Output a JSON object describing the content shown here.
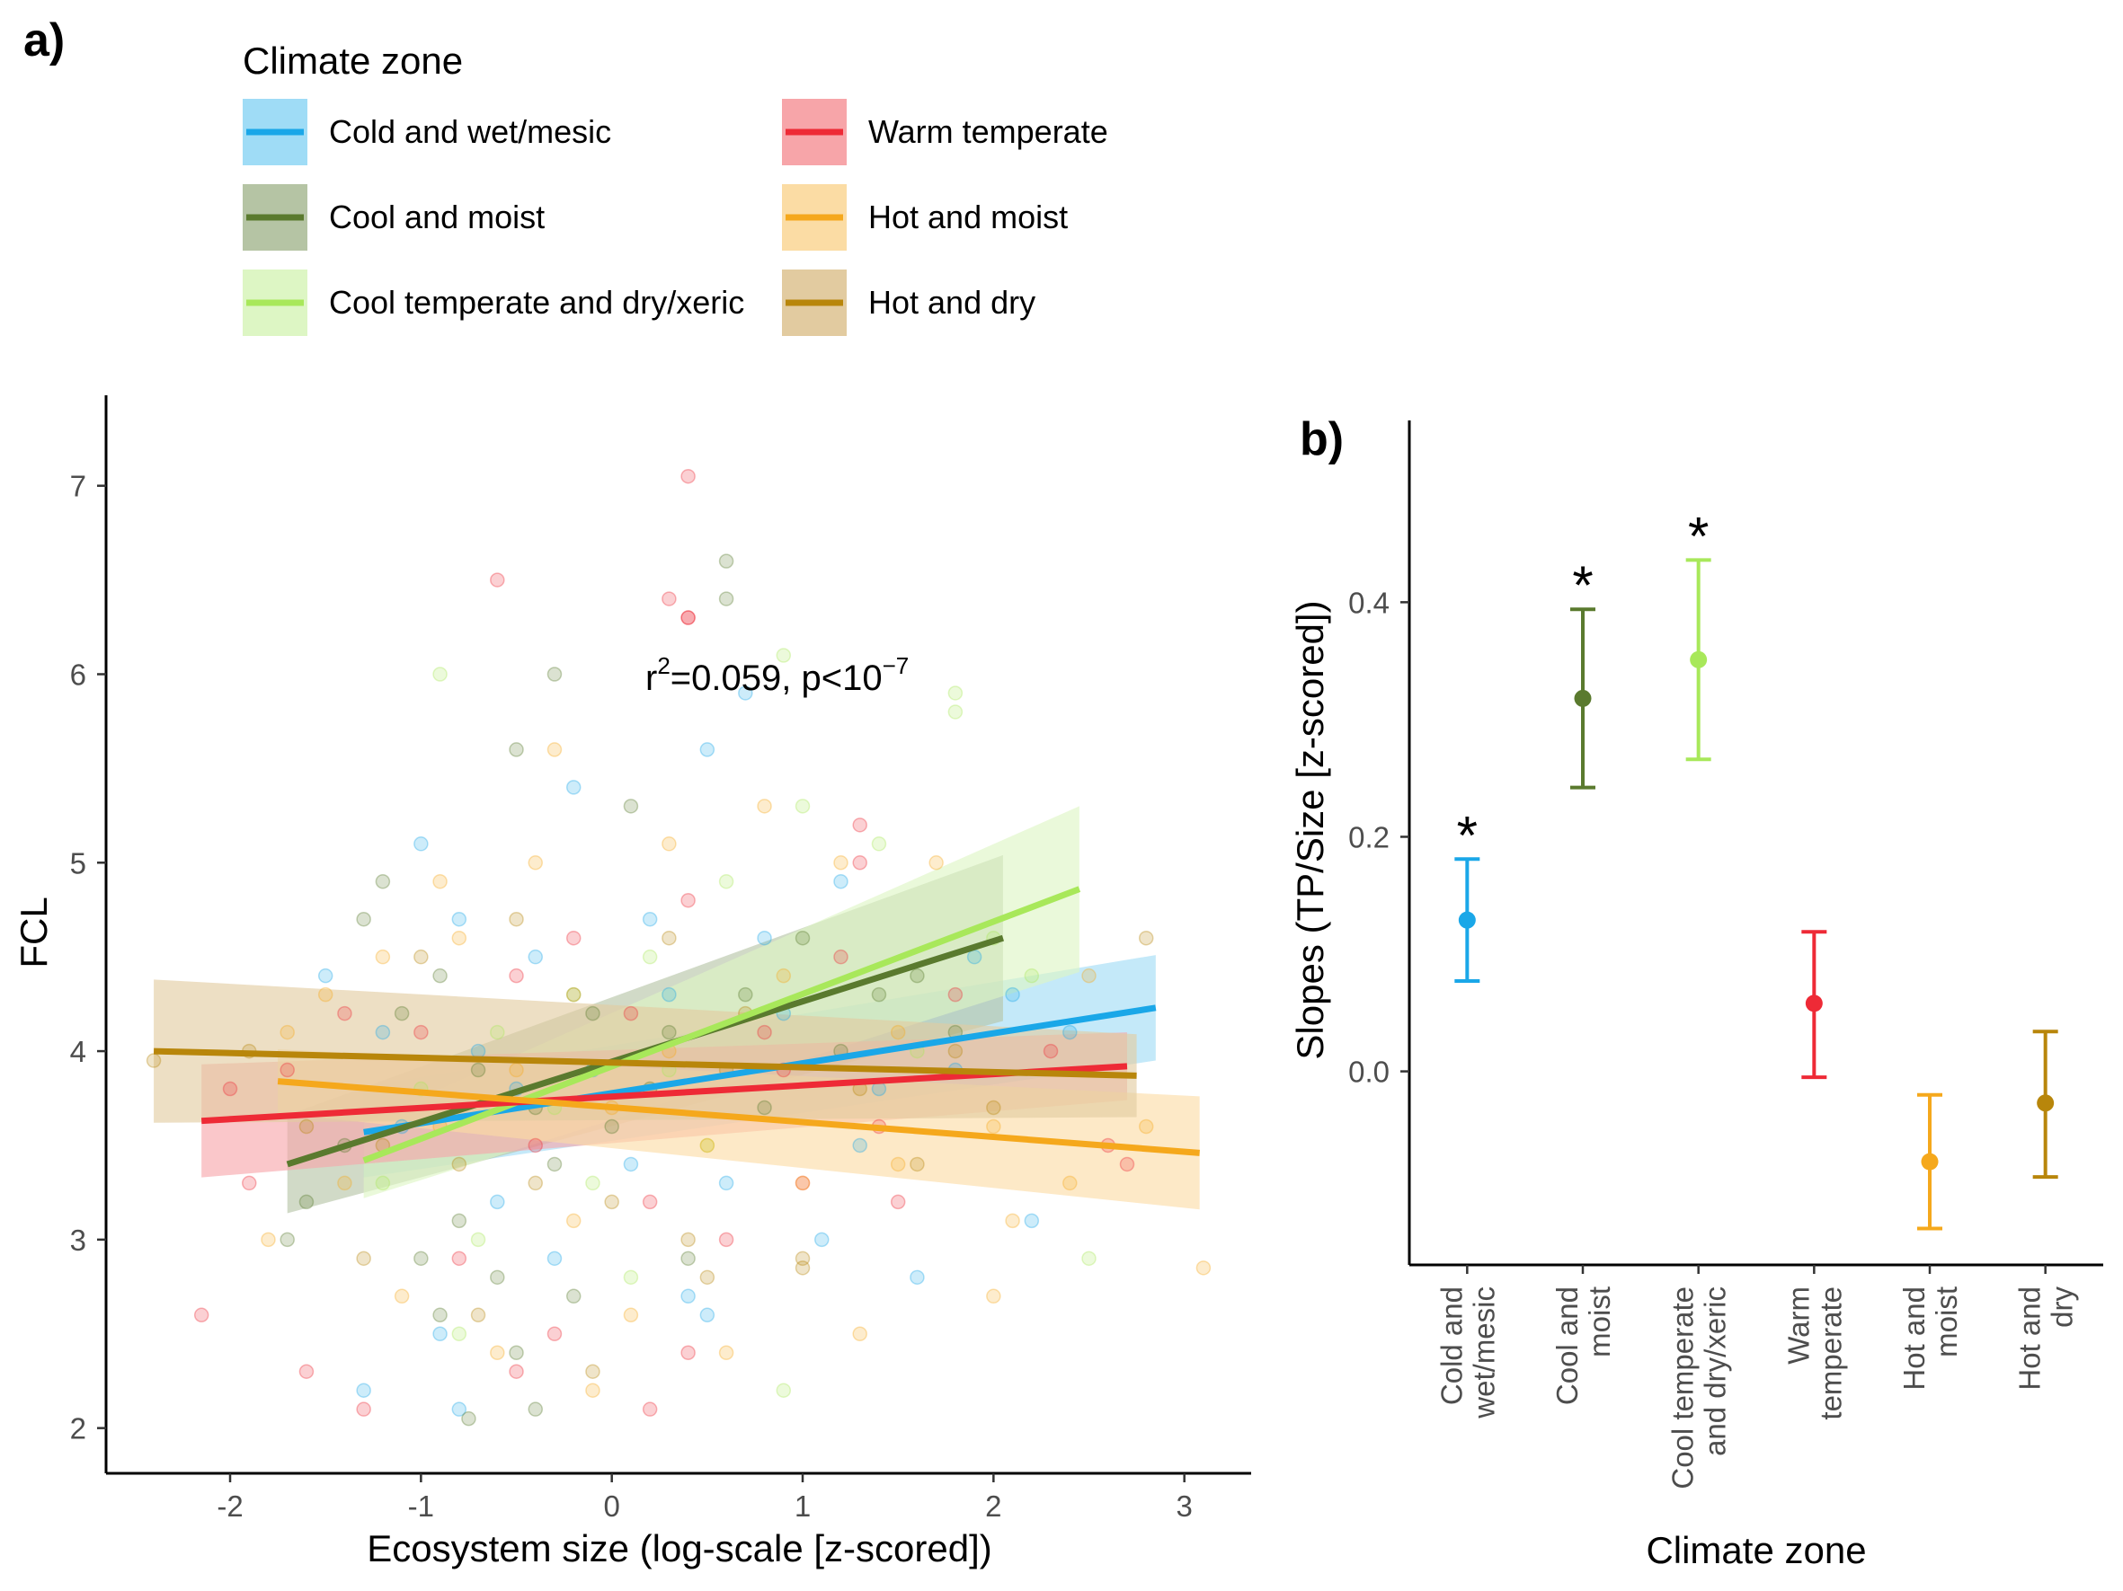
{
  "panel_labels": {
    "a": "a)",
    "b": "b)"
  },
  "legend": {
    "title": "Climate zone",
    "items": [
      {
        "key": "cold",
        "label": "Cold and wet/mesic",
        "line": "#1aa7e8",
        "fill": "#9fdcf6"
      },
      {
        "key": "cool_moist",
        "label": "Cool and moist",
        "line": "#5a7a2e",
        "fill": "#b5c4a4"
      },
      {
        "key": "cool_temp",
        "label": "Cool temperate and dry/xeric",
        "line": "#a8e85a",
        "fill": "#ddf6c4"
      },
      {
        "key": "warm",
        "label": "Warm temperate",
        "line": "#ee2a36",
        "fill": "#f7a5a9"
      },
      {
        "key": "hot_moist",
        "label": "Hot and moist",
        "line": "#f5a81c",
        "fill": "#fbdca4"
      },
      {
        "key": "hot_dry",
        "label": "Hot and dry",
        "line": "#b8860b",
        "fill": "#e2cba0"
      }
    ]
  },
  "chart_data": [
    {
      "type": "scatter",
      "title": "",
      "xlabel": "Ecosystem size (log-scale [z-scored])",
      "ylabel": "FCL",
      "xlim": [
        -2.65,
        3.35
      ],
      "ylim": [
        1.76,
        7.48
      ],
      "xticks": [
        "-2",
        "-1",
        "0",
        "1",
        "2",
        "3"
      ],
      "yticks": [
        "2",
        "3",
        "4",
        "5",
        "6",
        "7"
      ],
      "annotation": {
        "prefix": "r",
        "sup1": "2",
        "middle": "=0.059, p<10",
        "sup2": "−7"
      },
      "series": [
        {
          "key": "cold",
          "name": "Cold and wet/mesic",
          "x": [
            -1.3,
            2.85
          ],
          "y": [
            3.57,
            4.23
          ],
          "band": [
            0.24,
            0.28
          ]
        },
        {
          "key": "cool_moist",
          "name": "Cool and moist",
          "x": [
            -1.7,
            2.05
          ],
          "y": [
            3.4,
            4.6
          ],
          "band": [
            0.26,
            0.44
          ]
        },
        {
          "key": "cool_temp",
          "name": "Cool temperate and dry/xeric",
          "x": [
            -1.3,
            2.45
          ],
          "y": [
            3.42,
            4.86
          ],
          "band": [
            0.2,
            0.44
          ]
        },
        {
          "key": "warm",
          "name": "Warm temperate",
          "x": [
            -2.15,
            2.7
          ],
          "y": [
            3.63,
            3.92
          ],
          "band": [
            0.3,
            0.18
          ]
        },
        {
          "key": "hot_moist",
          "name": "Hot and moist",
          "x": [
            -1.75,
            3.08
          ],
          "y": [
            3.84,
            3.46
          ],
          "band": [
            0.17,
            0.3
          ]
        },
        {
          "key": "hot_dry",
          "name": "Hot and dry",
          "x": [
            -2.4,
            2.75
          ],
          "y": [
            4.0,
            3.87
          ],
          "band": [
            0.38,
            0.22
          ]
        }
      ],
      "points": {
        "cold": [
          [
            -1.0,
            5.1
          ],
          [
            -0.8,
            4.7
          ],
          [
            -0.4,
            4.5
          ],
          [
            -0.2,
            5.4
          ],
          [
            0.5,
            5.6
          ],
          [
            0.7,
            5.9
          ],
          [
            0.3,
            4.3
          ],
          [
            -1.2,
            4.1
          ],
          [
            -0.5,
            3.8
          ],
          [
            0.9,
            4.2
          ],
          [
            1.4,
            3.8
          ],
          [
            1.8,
            3.9
          ],
          [
            2.1,
            4.3
          ],
          [
            -0.6,
            3.2
          ],
          [
            0.4,
            2.7
          ],
          [
            -0.9,
            2.5
          ],
          [
            1.1,
            3.0
          ],
          [
            1.6,
            2.8
          ],
          [
            -1.5,
            4.4
          ],
          [
            0.1,
            3.4
          ],
          [
            -0.3,
            2.9
          ],
          [
            2.2,
            3.1
          ],
          [
            -1.3,
            2.2
          ],
          [
            0.8,
            4.6
          ],
          [
            1.2,
            4.9
          ],
          [
            -0.1,
            3.9
          ],
          [
            0.6,
            3.3
          ],
          [
            -0.7,
            4.0
          ],
          [
            0.2,
            4.7
          ],
          [
            1.9,
            4.5
          ],
          [
            -1.1,
            3.6
          ],
          [
            0.5,
            2.6
          ],
          [
            -0.8,
            2.1
          ],
          [
            1.3,
            3.5
          ],
          [
            2.4,
            4.1
          ]
        ],
        "cool_moist": [
          [
            -1.2,
            4.9
          ],
          [
            -0.9,
            4.4
          ],
          [
            -0.5,
            5.6
          ],
          [
            -0.3,
            6.0
          ],
          [
            0.1,
            5.3
          ],
          [
            0.6,
            6.4
          ],
          [
            0.6,
            6.6
          ],
          [
            -1.3,
            4.7
          ],
          [
            -1.1,
            4.2
          ],
          [
            -0.7,
            3.9
          ],
          [
            -0.4,
            3.7
          ],
          [
            0.0,
            3.6
          ],
          [
            0.3,
            4.1
          ],
          [
            0.7,
            4.3
          ],
          [
            1.0,
            4.6
          ],
          [
            1.4,
            4.3
          ],
          [
            1.8,
            4.1
          ],
          [
            -1.6,
            3.2
          ],
          [
            -1.0,
            2.9
          ],
          [
            -0.6,
            2.8
          ],
          [
            -0.2,
            2.7
          ],
          [
            0.4,
            2.9
          ],
          [
            -0.8,
            3.1
          ],
          [
            -0.3,
            3.4
          ],
          [
            0.2,
            3.8
          ],
          [
            -0.5,
            2.4
          ],
          [
            -0.9,
            2.6
          ],
          [
            -1.4,
            3.5
          ],
          [
            0.8,
            3.7
          ],
          [
            1.2,
            4.0
          ],
          [
            1.6,
            4.4
          ],
          [
            -0.1,
            4.2
          ],
          [
            -1.7,
            3.0
          ],
          [
            -0.4,
            2.1
          ],
          [
            -0.75,
            2.05
          ]
        ],
        "cool_temp": [
          [
            -0.9,
            6.0
          ],
          [
            0.9,
            6.1
          ],
          [
            1.8,
            5.9
          ],
          [
            1.8,
            5.8
          ],
          [
            1.0,
            5.3
          ],
          [
            0.6,
            4.9
          ],
          [
            0.2,
            4.5
          ],
          [
            -0.2,
            4.3
          ],
          [
            -0.6,
            4.1
          ],
          [
            -1.0,
            3.8
          ],
          [
            1.4,
            5.1
          ],
          [
            2.0,
            4.6
          ],
          [
            2.2,
            4.4
          ],
          [
            -0.3,
            3.7
          ],
          [
            0.5,
            3.5
          ],
          [
            -1.2,
            3.3
          ],
          [
            -0.7,
            3.0
          ],
          [
            0.1,
            2.8
          ],
          [
            0.9,
            2.2
          ],
          [
            -0.8,
            2.5
          ],
          [
            1.6,
            4.0
          ],
          [
            2.5,
            2.9
          ],
          [
            0.3,
            3.9
          ],
          [
            -0.1,
            3.3
          ]
        ],
        "warm": [
          [
            -0.6,
            6.5
          ],
          [
            0.4,
            7.05
          ],
          [
            0.3,
            6.4
          ],
          [
            0.4,
            6.3
          ],
          [
            0.4,
            6.3
          ],
          [
            1.3,
            5.2
          ],
          [
            1.3,
            5.0
          ],
          [
            0.4,
            4.8
          ],
          [
            -0.2,
            4.6
          ],
          [
            -0.5,
            4.4
          ],
          [
            0.1,
            4.2
          ],
          [
            0.8,
            4.1
          ],
          [
            1.2,
            4.5
          ],
          [
            1.8,
            4.3
          ],
          [
            2.3,
            4.0
          ],
          [
            -1.0,
            4.1
          ],
          [
            -1.4,
            4.2
          ],
          [
            -1.7,
            3.9
          ],
          [
            -2.0,
            3.8
          ],
          [
            -2.15,
            2.6
          ],
          [
            -1.9,
            3.3
          ],
          [
            -0.4,
            3.5
          ],
          [
            0.2,
            3.2
          ],
          [
            0.6,
            3.0
          ],
          [
            1.0,
            3.3
          ],
          [
            1.4,
            3.6
          ],
          [
            2.6,
            3.5
          ],
          [
            -0.8,
            2.9
          ],
          [
            -0.3,
            2.5
          ],
          [
            0.4,
            2.4
          ],
          [
            0.2,
            2.1
          ],
          [
            -0.5,
            2.3
          ],
          [
            -1.3,
            2.1
          ],
          [
            -1.6,
            2.3
          ],
          [
            0.9,
            3.9
          ],
          [
            1.5,
            3.2
          ],
          [
            2.7,
            3.4
          ]
        ],
        "hot_moist": [
          [
            -1.5,
            4.3
          ],
          [
            -1.2,
            4.5
          ],
          [
            -0.9,
            4.9
          ],
          [
            -0.4,
            5.0
          ],
          [
            -0.3,
            5.6
          ],
          [
            0.3,
            5.1
          ],
          [
            0.8,
            5.3
          ],
          [
            1.2,
            5.0
          ],
          [
            1.7,
            5.0
          ],
          [
            -1.8,
            3.0
          ],
          [
            -1.4,
            3.3
          ],
          [
            -0.9,
            3.6
          ],
          [
            -0.5,
            3.9
          ],
          [
            0.0,
            3.7
          ],
          [
            0.5,
            3.5
          ],
          [
            1.0,
            3.3
          ],
          [
            1.5,
            3.4
          ],
          [
            2.0,
            3.6
          ],
          [
            2.4,
            3.3
          ],
          [
            2.8,
            3.6
          ],
          [
            3.1,
            2.85
          ],
          [
            -1.1,
            2.7
          ],
          [
            -0.6,
            2.4
          ],
          [
            0.1,
            2.6
          ],
          [
            0.6,
            2.4
          ],
          [
            1.3,
            2.5
          ],
          [
            2.0,
            2.7
          ],
          [
            2.1,
            3.1
          ],
          [
            -0.2,
            3.1
          ],
          [
            0.9,
            4.4
          ],
          [
            -0.8,
            4.6
          ],
          [
            1.5,
            4.1
          ],
          [
            2.5,
            4.4
          ],
          [
            -1.7,
            4.1
          ],
          [
            0.3,
            4.0
          ],
          [
            -0.1,
            2.2
          ]
        ],
        "hot_dry": [
          [
            -1.9,
            4.0
          ],
          [
            -2.4,
            3.95
          ],
          [
            -1.6,
            3.6
          ],
          [
            -1.2,
            3.5
          ],
          [
            -0.8,
            3.4
          ],
          [
            -0.4,
            3.3
          ],
          [
            0.0,
            3.2
          ],
          [
            0.4,
            3.0
          ],
          [
            1.0,
            2.9
          ],
          [
            -0.2,
            4.3
          ],
          [
            0.3,
            4.6
          ],
          [
            0.7,
            4.2
          ],
          [
            1.3,
            3.8
          ],
          [
            2.0,
            3.7
          ],
          [
            2.8,
            4.6
          ],
          [
            1.6,
            3.4
          ],
          [
            -1.0,
            4.5
          ],
          [
            -0.5,
            4.7
          ],
          [
            0.6,
            3.9
          ],
          [
            1.0,
            2.85
          ],
          [
            -1.3,
            2.9
          ],
          [
            -0.7,
            2.6
          ],
          [
            -0.1,
            2.3
          ],
          [
            0.5,
            2.8
          ],
          [
            1.8,
            4.0
          ]
        ]
      }
    },
    {
      "type": "errorbar",
      "title": "",
      "xlabel": "Climate zone",
      "ylabel": "Slopes (TP/Size [z-scored])",
      "ylim": [
        -0.165,
        0.555
      ],
      "yticks": [
        "0.0",
        "0.2",
        "0.4"
      ],
      "categories": [
        {
          "key": "cold",
          "label_lines": [
            "Cold and",
            "wet/mesic"
          ],
          "est": 0.129,
          "lo": 0.077,
          "hi": 0.181,
          "star": "*"
        },
        {
          "key": "cool_moist",
          "label_lines": [
            "Cool and",
            "moist"
          ],
          "est": 0.318,
          "lo": 0.242,
          "hi": 0.394,
          "star": "*"
        },
        {
          "key": "cool_temp",
          "label_lines": [
            "Cool temperate",
            "and dry/xeric"
          ],
          "est": 0.351,
          "lo": 0.266,
          "hi": 0.436,
          "star": "*"
        },
        {
          "key": "warm",
          "label_lines": [
            "Warm",
            "temperate"
          ],
          "est": 0.058,
          "lo": -0.005,
          "hi": 0.119,
          "star": ""
        },
        {
          "key": "hot_moist",
          "label_lines": [
            "Hot and",
            "moist"
          ],
          "est": -0.077,
          "lo": -0.134,
          "hi": -0.02,
          "star": ""
        },
        {
          "key": "hot_dry",
          "label_lines": [
            "Hot and",
            "dry"
          ],
          "est": -0.027,
          "lo": -0.09,
          "hi": 0.034,
          "star": ""
        }
      ]
    }
  ]
}
